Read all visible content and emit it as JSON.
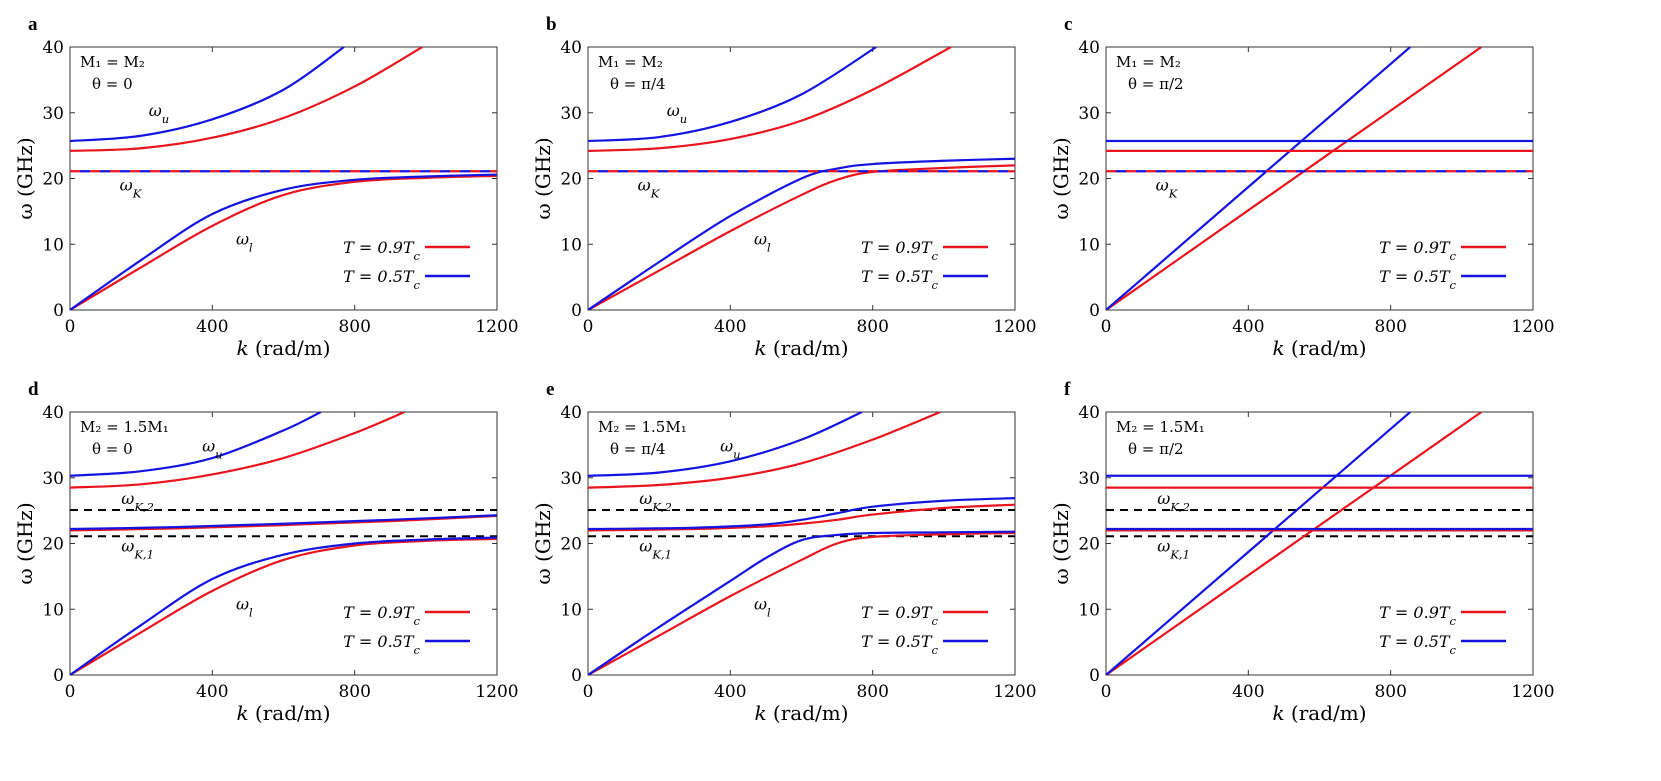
{
  "colors": {
    "red": "#e8141e",
    "blue": "#1414e0",
    "dashed": "#000000",
    "axis": "#000000"
  },
  "shared_axes": {
    "xlabel": "k (rad/m)",
    "ylabel": "ω (GHz)",
    "xlim": [
      0,
      1200
    ],
    "ylim": [
      0,
      40
    ],
    "xticks": [
      0,
      400,
      800,
      1200
    ],
    "yticks": [
      0,
      10,
      20,
      30,
      40
    ]
  },
  "legend": {
    "items": [
      {
        "label": "T = 0.9T_c",
        "color": "red"
      },
      {
        "label": "T = 0.5T_c",
        "color": "blue"
      }
    ],
    "placement": "lower-right"
  },
  "chart_data": [
    {
      "panel": "a",
      "type": "line",
      "condition": [
        "M₁ = M₂",
        "θ = 0"
      ],
      "labels": [
        {
          "text": "ω_u",
          "x": 250,
          "y": 29.5
        },
        {
          "text": "ω_K",
          "x": 170,
          "y": 18.2
        },
        {
          "text": "ω_l",
          "x": 490,
          "y": 10.0
        }
      ],
      "hlines": [],
      "series": [
        {
          "name": "T = 0.9T_c",
          "color": "red",
          "x": [
            0,
            200,
            400,
            600,
            800,
            1000,
            1200
          ],
          "y": [
            0,
            6.5,
            12.8,
            17.5,
            19.5,
            20.1,
            20.4
          ]
        },
        {
          "name": "T = 0.5T_c",
          "color": "blue",
          "x": [
            0,
            200,
            400,
            600,
            800,
            1000,
            1200
          ],
          "y": [
            0,
            7.6,
            14.6,
            18.3,
            19.8,
            20.3,
            20.6
          ]
        },
        {
          "name": "T = 0.9T_c",
          "color": "red",
          "x": [
            0,
            200,
            400,
            600,
            800,
            990
          ],
          "y": [
            24.2,
            24.6,
            26.2,
            29.2,
            34.0,
            40.0
          ]
        },
        {
          "name": "T = 0.5T_c",
          "color": "blue",
          "x": [
            0,
            200,
            400,
            600,
            770
          ],
          "y": [
            25.7,
            26.5,
            29.0,
            33.5,
            40.0
          ]
        },
        {
          "name": "ω_K (0.9T_c)",
          "color": "red",
          "dash": "10 10",
          "x": [
            0,
            1200
          ],
          "y": [
            21.1,
            21.1
          ]
        },
        {
          "name": "ω_K (0.5T_c)",
          "color": "blue",
          "dash": "10 10",
          "dashoffset": 10,
          "x": [
            0,
            1200
          ],
          "y": [
            21.1,
            21.1
          ]
        }
      ]
    },
    {
      "panel": "b",
      "type": "line",
      "condition": [
        "M₁ = M₂",
        "θ = π/4"
      ],
      "labels": [
        {
          "text": "ω_u",
          "x": 250,
          "y": 29.5
        },
        {
          "text": "ω_K",
          "x": 170,
          "y": 18.2
        },
        {
          "text": "ω_l",
          "x": 490,
          "y": 10.0
        }
      ],
      "hlines": [],
      "series": [
        {
          "name": "T = 0.9T_c",
          "color": "red",
          "x": [
            0,
            200,
            400,
            600,
            700,
            800,
            1000,
            1200
          ],
          "y": [
            0,
            6.0,
            12.0,
            17.5,
            19.8,
            21.0,
            21.6,
            22.0
          ]
        },
        {
          "name": "T = 0.5T_c",
          "color": "blue",
          "x": [
            0,
            200,
            400,
            600,
            700,
            800,
            1000,
            1200
          ],
          "y": [
            0,
            7.3,
            14.3,
            20.0,
            21.5,
            22.2,
            22.7,
            23.0
          ]
        },
        {
          "name": "T = 0.9T_c",
          "color": "red",
          "x": [
            0,
            200,
            400,
            600,
            800,
            1020
          ],
          "y": [
            24.2,
            24.6,
            26.0,
            28.8,
            33.5,
            40.0
          ]
        },
        {
          "name": "T = 0.5T_c",
          "color": "blue",
          "x": [
            0,
            200,
            400,
            600,
            810
          ],
          "y": [
            25.7,
            26.3,
            28.6,
            32.8,
            40.0
          ]
        },
        {
          "name": "ω_K (0.9T_c)",
          "color": "red",
          "dash": "10 10",
          "x": [
            0,
            1200
          ],
          "y": [
            21.1,
            21.1
          ]
        },
        {
          "name": "ω_K (0.5T_c)",
          "color": "blue",
          "dash": "10 10",
          "dashoffset": 10,
          "x": [
            0,
            1200
          ],
          "y": [
            21.1,
            21.1
          ]
        }
      ]
    },
    {
      "panel": "c",
      "type": "line",
      "condition": [
        "M₁ = M₂",
        "θ = π/2"
      ],
      "labels": [
        {
          "text": "ω_K",
          "x": 170,
          "y": 18.2
        }
      ],
      "hlines": [],
      "series": [
        {
          "name": "T = 0.9T_c",
          "color": "red",
          "x": [
            0,
            1055
          ],
          "y": [
            0,
            40
          ]
        },
        {
          "name": "T = 0.5T_c",
          "color": "blue",
          "x": [
            0,
            855
          ],
          "y": [
            0,
            40
          ]
        },
        {
          "name": "ω_u (0.9T_c)",
          "color": "red",
          "x": [
            0,
            1200
          ],
          "y": [
            24.2,
            24.2
          ]
        },
        {
          "name": "ω_u (0.5T_c)",
          "color": "blue",
          "x": [
            0,
            1200
          ],
          "y": [
            25.7,
            25.7
          ]
        },
        {
          "name": "ω_K (0.9T_c)",
          "color": "red",
          "dash": "10 10",
          "x": [
            0,
            1200
          ],
          "y": [
            21.1,
            21.1
          ]
        },
        {
          "name": "ω_K (0.5T_c)",
          "color": "blue",
          "dash": "10 10",
          "dashoffset": 10,
          "x": [
            0,
            1200
          ],
          "y": [
            21.1,
            21.1
          ]
        }
      ]
    },
    {
      "panel": "d",
      "type": "line",
      "condition": [
        "M₂ = 1.5M₁",
        "θ = 0"
      ],
      "labels": [
        {
          "text": "ω_u",
          "x": 400,
          "y": 34.0
        },
        {
          "text": "ω_K,2",
          "x": 190,
          "y": 26.0
        },
        {
          "text": "ω_K,1",
          "x": 190,
          "y": 18.8
        },
        {
          "text": "ω_l",
          "x": 490,
          "y": 10.0
        }
      ],
      "hlines": [
        {
          "y": 25.1
        },
        {
          "y": 21.1
        }
      ],
      "series": [
        {
          "name": "T = 0.9T_c",
          "color": "red",
          "x": [
            0,
            200,
            400,
            600,
            800,
            1000,
            1200
          ],
          "y": [
            0,
            6.5,
            12.8,
            17.5,
            19.7,
            20.4,
            20.7
          ]
        },
        {
          "name": "T = 0.5T_c",
          "color": "blue",
          "x": [
            0,
            200,
            400,
            600,
            800,
            1000,
            1200
          ],
          "y": [
            0,
            7.6,
            14.6,
            18.3,
            20.0,
            20.6,
            20.9
          ]
        },
        {
          "name": "T = 0.9T_c",
          "color": "red",
          "x": [
            0,
            300,
            600,
            900,
            1200
          ],
          "y": [
            22.0,
            22.3,
            22.8,
            23.4,
            24.2
          ]
        },
        {
          "name": "T = 0.5T_c",
          "color": "blue",
          "x": [
            0,
            300,
            600,
            900,
            1200
          ],
          "y": [
            22.2,
            22.5,
            23.0,
            23.6,
            24.3
          ]
        },
        {
          "name": "T = 0.9T_c",
          "color": "red",
          "x": [
            0,
            200,
            400,
            600,
            800,
            940
          ],
          "y": [
            28.5,
            29.0,
            30.5,
            33.0,
            36.8,
            40.0
          ]
        },
        {
          "name": "T = 0.5T_c",
          "color": "blue",
          "x": [
            0,
            200,
            400,
            600,
            705
          ],
          "y": [
            30.3,
            31.0,
            33.0,
            37.2,
            40.0
          ]
        }
      ]
    },
    {
      "panel": "e",
      "type": "line",
      "condition": [
        "M₂ = 1.5M₁",
        "θ = π/4"
      ],
      "labels": [
        {
          "text": "ω_u",
          "x": 400,
          "y": 34.0
        },
        {
          "text": "ω_K,2",
          "x": 190,
          "y": 26.0
        },
        {
          "text": "ω_K,1",
          "x": 190,
          "y": 18.8
        },
        {
          "text": "ω_l",
          "x": 490,
          "y": 10.0
        }
      ],
      "hlines": [
        {
          "y": 25.1
        },
        {
          "y": 21.1
        }
      ],
      "series": [
        {
          "name": "T = 0.9T_c",
          "color": "red",
          "x": [
            0,
            200,
            400,
            600,
            700,
            800,
            1000,
            1200
          ],
          "y": [
            0,
            6.0,
            12.0,
            17.5,
            20.0,
            21.0,
            21.4,
            21.6
          ]
        },
        {
          "name": "T = 0.5T_c",
          "color": "blue",
          "x": [
            0,
            200,
            400,
            500,
            600,
            700,
            800,
            1000,
            1200
          ],
          "y": [
            0,
            7.3,
            14.3,
            17.8,
            20.5,
            21.3,
            21.6,
            21.7,
            21.8
          ]
        },
        {
          "name": "T = 0.9T_c",
          "color": "red",
          "x": [
            0,
            300,
            500,
            600,
            700,
            800,
            1000,
            1200
          ],
          "y": [
            22.0,
            22.2,
            22.6,
            23.0,
            23.6,
            24.4,
            25.4,
            25.9
          ]
        },
        {
          "name": "T = 0.5T_c",
          "color": "blue",
          "x": [
            0,
            300,
            500,
            600,
            700,
            800,
            1000,
            1200
          ],
          "y": [
            22.2,
            22.4,
            22.9,
            23.6,
            24.6,
            25.6,
            26.5,
            26.9
          ]
        },
        {
          "name": "T = 0.9T_c",
          "color": "red",
          "x": [
            0,
            200,
            400,
            600,
            800,
            990
          ],
          "y": [
            28.5,
            28.9,
            30.0,
            32.2,
            35.8,
            40.0
          ]
        },
        {
          "name": "T = 0.5T_c",
          "color": "blue",
          "x": [
            0,
            200,
            400,
            600,
            770
          ],
          "y": [
            30.3,
            30.8,
            32.5,
            35.8,
            40.0
          ]
        }
      ]
    },
    {
      "panel": "f",
      "type": "line",
      "condition": [
        "M₂ = 1.5M₁",
        "θ = π/2"
      ],
      "labels": [
        {
          "text": "ω_K,2",
          "x": 190,
          "y": 26.0
        },
        {
          "text": "ω_K,1",
          "x": 190,
          "y": 18.8
        }
      ],
      "hlines": [
        {
          "y": 25.1
        },
        {
          "y": 21.1
        }
      ],
      "series": [
        {
          "name": "T = 0.9T_c",
          "color": "red",
          "x": [
            0,
            1055
          ],
          "y": [
            0,
            40
          ]
        },
        {
          "name": "T = 0.5T_c",
          "color": "blue",
          "x": [
            0,
            855
          ],
          "y": [
            0,
            40
          ]
        },
        {
          "name": "ω_u (0.9T_c)",
          "color": "red",
          "x": [
            0,
            1200
          ],
          "y": [
            28.5,
            28.5
          ]
        },
        {
          "name": "ω_u (0.5T_c)",
          "color": "blue",
          "x": [
            0,
            1200
          ],
          "y": [
            30.3,
            30.3
          ]
        },
        {
          "name": "ω_m (0.9T_c)",
          "color": "red",
          "x": [
            0,
            1200
          ],
          "y": [
            22.0,
            22.0
          ]
        },
        {
          "name": "ω_m (0.5T_c)",
          "color": "blue",
          "x": [
            0,
            1200
          ],
          "y": [
            22.2,
            22.2
          ]
        }
      ]
    }
  ]
}
